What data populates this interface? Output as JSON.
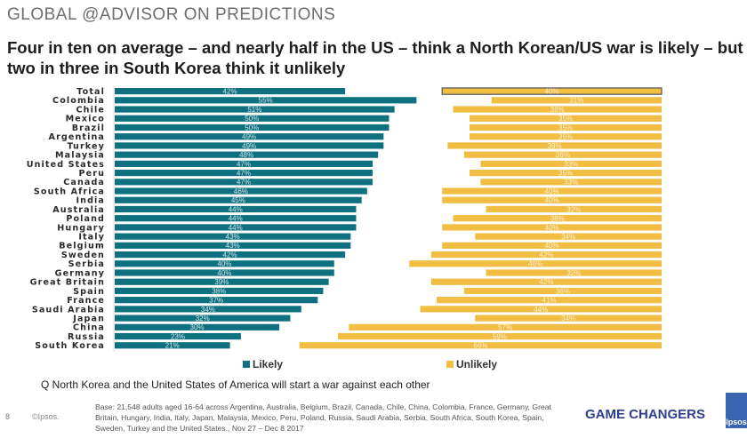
{
  "header": {
    "kicker": "GLOBAL @ADVISOR ON PREDICTIONS",
    "title": "Four in ten on average – and nearly half in the US – think a North Korean/US war is likely – but two in three in South Korea think it unlikely"
  },
  "chart_data": {
    "type": "bar",
    "orientation": "horizontal",
    "categories": [
      "Total",
      "Colombia",
      "Chile",
      "Mexico",
      "Brazil",
      "Argentina",
      "Turkey",
      "Malaysia",
      "United States",
      "Peru",
      "Canada",
      "South Africa",
      "India",
      "Australia",
      "Poland",
      "Hungary",
      "Italy",
      "Belgium",
      "Sweden",
      "Serbia",
      "Germany",
      "Great Britain",
      "Spain",
      "France",
      "Saudi Arabia",
      "Japan",
      "China",
      "Russia",
      "South Korea"
    ],
    "series": [
      {
        "name": "Likely",
        "color": "#0f717f",
        "values": [
          42,
          55,
          51,
          50,
          50,
          49,
          49,
          48,
          47,
          47,
          47,
          46,
          45,
          44,
          44,
          44,
          43,
          43,
          42,
          40,
          40,
          39,
          38,
          37,
          34,
          32,
          30,
          23,
          21
        ]
      },
      {
        "name": "Unlikely",
        "color": "#f1bd43",
        "values": [
          40,
          31,
          38,
          35,
          35,
          35,
          39,
          36,
          33,
          35,
          33,
          40,
          40,
          32,
          38,
          40,
          34,
          40,
          42,
          46,
          32,
          42,
          36,
          41,
          44,
          34,
          57,
          59,
          66
        ]
      }
    ],
    "value_suffix": "%",
    "xlim": [
      0,
      100
    ],
    "grid": false,
    "legend": "bottom",
    "highlight_category": "Total"
  },
  "question": "Q North Korea and the United States of America will start a war against each other",
  "footer": {
    "page": "8",
    "copyright": "©Ipsos.",
    "base": "Base: 21,548 adults aged 16-64 across Argentina, Australia, Belgium, Brazil, Canada, Chile, China, Colombia, France, Germany, Great Britain, Hungary, India, Italy, Japan, Malaysia, Mexico, Peru, Poland, Russia, Saudi Arabia, Serbia, South Africa, South Korea, Spain, Sweden, Turkey and the United States., Nov 27 – Dec 8 2017",
    "brand": "GAME CHANGERS",
    "logo": "Ipsos"
  }
}
